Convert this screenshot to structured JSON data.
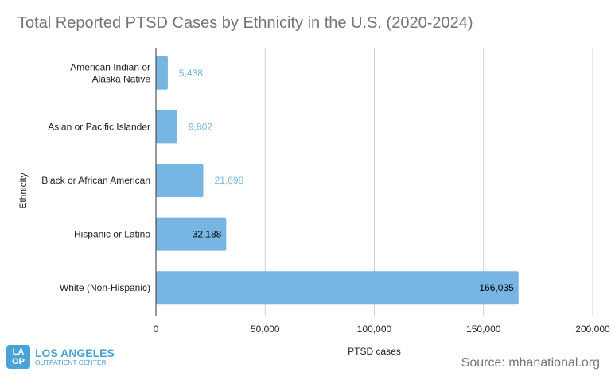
{
  "chart_data": {
    "type": "bar",
    "orientation": "horizontal",
    "title": "Total Reported PTSD Cases by Ethnicity in the U.S. (2020-2024)",
    "xlabel": "PTSD cases",
    "ylabel": "Ethnicity",
    "categories": [
      "American Indian or Alaska Native",
      "Asian or Pacific Islander",
      "Black or African American",
      "Hispanic or Latino",
      "White (Non-Hispanic)"
    ],
    "category_lines": [
      [
        "American Indian or",
        "Alaska Native"
      ],
      [
        "Asian or Pacific Islander"
      ],
      [
        "Black or African American"
      ],
      [
        "Hispanic or Latino"
      ],
      [
        "White (Non-Hispanic)"
      ]
    ],
    "values": [
      5438,
      9802,
      21698,
      32188,
      166035
    ],
    "data_labels": [
      "5,438",
      "9,802",
      "21,698",
      "32,188",
      "166,035"
    ],
    "xlim": [
      0,
      200000
    ],
    "xticks": [
      0,
      50000,
      100000,
      150000,
      200000
    ],
    "xtick_labels": [
      "0",
      "50,000",
      "100,000",
      "150,000",
      "200,000"
    ],
    "grid": true,
    "bar_color": "#77b6e3",
    "outside_label_color": "#77b6e3",
    "inside_label_color": "#000000"
  },
  "source": "Source: mhanational.org",
  "logo": {
    "box_lines": [
      "LA",
      "OP"
    ],
    "line1": "LOS ANGELES",
    "line2": "OUTPATIENT CENTER"
  }
}
